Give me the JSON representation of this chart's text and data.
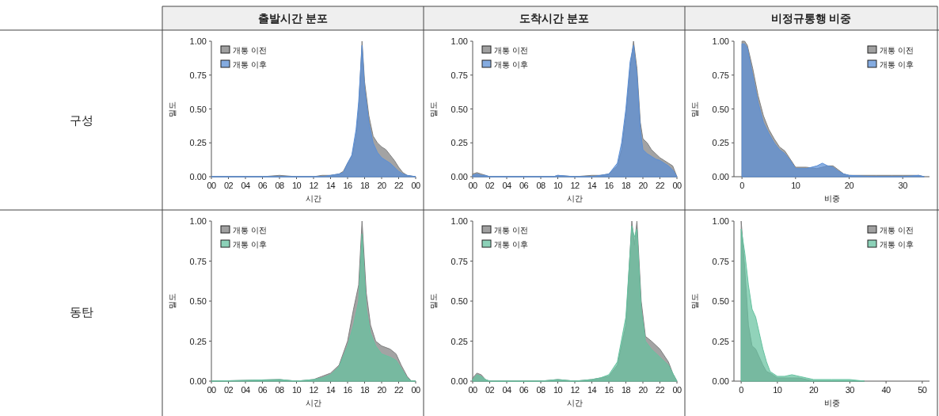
{
  "chart_data": [
    {
      "type": "area",
      "title": "출발시간 분포",
      "xlabel": "시간",
      "ylabel": "밀도",
      "legend": "top left",
      "xlim": [
        0,
        24
      ],
      "ylim": [
        0,
        1
      ],
      "xticks": [
        {
          "value": 0,
          "label": "00"
        },
        {
          "value": 2,
          "label": "02"
        },
        {
          "value": 4,
          "label": "04"
        },
        {
          "value": 6,
          "label": "06"
        },
        {
          "value": 8,
          "label": "08"
        },
        10,
        12,
        14,
        16,
        18,
        20,
        22,
        {
          "value": 24,
          "label": "00"
        }
      ],
      "yticks": [
        {
          "value": 0,
          "label": "0.00"
        },
        {
          "value": 0.25,
          "label": "0.25"
        },
        {
          "value": 0.5,
          "label": "0.50"
        },
        {
          "value": 0.75,
          "label": "0.75"
        },
        {
          "value": 1,
          "label": "1.00"
        }
      ],
      "x": [
        0,
        2,
        4,
        6,
        8,
        10,
        12,
        13,
        14,
        15,
        15.5,
        16,
        16.5,
        17,
        17.3,
        17.7,
        18,
        18.5,
        19,
        19.5,
        20,
        20.5,
        21,
        21.5,
        22,
        22.5,
        23,
        24
      ],
      "series": [
        {
          "name": "개통 이전",
          "color": "#808080",
          "values": [
            0,
            0,
            0,
            0,
            0.01,
            0,
            0,
            0.01,
            0.01,
            0.02,
            0.04,
            0.1,
            0.15,
            0.3,
            0.5,
            1.0,
            0.7,
            0.45,
            0.3,
            0.25,
            0.22,
            0.2,
            0.16,
            0.12,
            0.07,
            0.03,
            0.01,
            0
          ]
        },
        {
          "name": "개통 이후",
          "color": "#5b8fd6",
          "values": [
            0,
            0,
            0,
            0,
            0,
            0,
            0,
            0,
            0.01,
            0.02,
            0.03,
            0.1,
            0.16,
            0.35,
            0.55,
            0.97,
            0.65,
            0.4,
            0.25,
            0.18,
            0.14,
            0.12,
            0.1,
            0.07,
            0.04,
            0.02,
            0.01,
            0
          ]
        }
      ]
    },
    {
      "type": "area",
      "title": "도착시간 분포",
      "xlabel": "시간",
      "ylabel": "밀도",
      "legend": "top left",
      "xlim": [
        0,
        24
      ],
      "ylim": [
        0,
        1
      ],
      "xticks": [
        {
          "value": 0,
          "label": "00"
        },
        {
          "value": 2,
          "label": "02"
        },
        {
          "value": 4,
          "label": "04"
        },
        {
          "value": 6,
          "label": "06"
        },
        {
          "value": 8,
          "label": "08"
        },
        10,
        12,
        14,
        16,
        18,
        20,
        22,
        {
          "value": 24,
          "label": "00"
        }
      ],
      "yticks": [
        {
          "value": 0,
          "label": "0.00"
        },
        {
          "value": 0.25,
          "label": "0.25"
        },
        {
          "value": 0.5,
          "label": "0.50"
        },
        {
          "value": 0.75,
          "label": "0.75"
        },
        {
          "value": 1,
          "label": "1.00"
        }
      ],
      "x": [
        0,
        0.5,
        1,
        1.5,
        2,
        4,
        6,
        8,
        9.5,
        10,
        12,
        14,
        15,
        16,
        17,
        17.5,
        18,
        18.5,
        18.9,
        19.3,
        19.7,
        20,
        20.5,
        21,
        21.5,
        22,
        22.5,
        23,
        23.5,
        24
      ],
      "series": [
        {
          "name": "개통 이전",
          "color": "#808080",
          "values": [
            0.02,
            0.03,
            0.02,
            0.01,
            0,
            0,
            0,
            0,
            0,
            0.01,
            0,
            0.01,
            0.01,
            0.02,
            0.08,
            0.2,
            0.45,
            0.8,
            1.0,
            0.8,
            0.4,
            0.28,
            0.25,
            0.2,
            0.17,
            0.14,
            0.12,
            0.1,
            0.08,
            0
          ]
        },
        {
          "name": "개통 이후",
          "color": "#5b8fd6",
          "values": [
            0.01,
            0.02,
            0.01,
            0.01,
            0,
            0,
            0,
            0,
            0,
            0.01,
            0,
            0,
            0.01,
            0.02,
            0.1,
            0.25,
            0.5,
            0.85,
            0.97,
            0.75,
            0.35,
            0.2,
            0.17,
            0.15,
            0.13,
            0.12,
            0.1,
            0.08,
            0.05,
            0
          ]
        }
      ]
    },
    {
      "type": "area",
      "title": "비정규통행 비중",
      "xlabel": "비중",
      "ylabel": "밀도",
      "legend": "top right",
      "xlim": [
        -1.5,
        35
      ],
      "ylim": [
        0,
        1
      ],
      "xticks": [
        0,
        10,
        20,
        30
      ],
      "yticks": [
        {
          "value": 0,
          "label": "0.00"
        },
        {
          "value": 0.25,
          "label": "0.25"
        },
        {
          "value": 0.5,
          "label": "0.50"
        },
        {
          "value": 0.75,
          "label": "0.75"
        },
        {
          "value": 1,
          "label": "1.00"
        }
      ],
      "x": [
        0,
        0.5,
        1,
        2,
        3,
        4,
        5,
        6,
        7,
        8,
        9,
        10,
        12,
        14,
        15,
        16,
        17,
        18,
        19,
        20,
        25,
        28,
        30,
        33,
        34
      ],
      "series": [
        {
          "name": "개통 이전",
          "color": "#808080",
          "values": [
            1.0,
            1.0,
            0.97,
            0.8,
            0.6,
            0.45,
            0.35,
            0.28,
            0.22,
            0.19,
            0.13,
            0.07,
            0.07,
            0.06,
            0.07,
            0.08,
            0.08,
            0.05,
            0.02,
            0.01,
            0.01,
            0.01,
            0.01,
            0.01,
            0
          ]
        },
        {
          "name": "개통 이후",
          "color": "#5b8fd6",
          "values": [
            0.98,
            0.98,
            0.95,
            0.75,
            0.55,
            0.4,
            0.32,
            0.25,
            0.2,
            0.17,
            0.12,
            0.06,
            0.06,
            0.08,
            0.1,
            0.08,
            0.07,
            0.04,
            0.02,
            0.01,
            0,
            0,
            0,
            0.01,
            0
          ]
        }
      ]
    },
    {
      "type": "area",
      "xlabel": "시간",
      "ylabel": "밀도",
      "legend": "top left",
      "xlim": [
        0,
        24
      ],
      "ylim": [
        0,
        1
      ],
      "xticks": [
        {
          "value": 0,
          "label": "00"
        },
        {
          "value": 2,
          "label": "02"
        },
        {
          "value": 4,
          "label": "04"
        },
        {
          "value": 6,
          "label": "06"
        },
        {
          "value": 8,
          "label": "08"
        },
        10,
        12,
        14,
        16,
        18,
        20,
        22,
        {
          "value": 24,
          "label": "00"
        }
      ],
      "yticks": [
        {
          "value": 0,
          "label": "0.00"
        },
        {
          "value": 0.25,
          "label": "0.25"
        },
        {
          "value": 0.5,
          "label": "0.50"
        },
        {
          "value": 0.75,
          "label": "0.75"
        },
        {
          "value": 1,
          "label": "1.00"
        }
      ],
      "x": [
        0,
        8,
        10,
        12,
        13,
        14,
        15,
        16,
        16.7,
        17.3,
        17.7,
        18.2,
        18.7,
        19.3,
        20,
        21,
        21.7,
        22.3,
        23,
        23.5,
        24
      ],
      "series": [
        {
          "name": "개통 이전",
          "color": "#808080",
          "values": [
            0,
            0.01,
            0,
            0.01,
            0.03,
            0.05,
            0.1,
            0.25,
            0.45,
            0.6,
            1.0,
            0.55,
            0.35,
            0.25,
            0.22,
            0.2,
            0.17,
            0.1,
            0.03,
            0,
            0
          ]
        },
        {
          "name": "개통 이후",
          "color": "#66c2a0",
          "values": [
            0,
            0.01,
            0,
            0.01,
            0.02,
            0.04,
            0.09,
            0.22,
            0.35,
            0.5,
            0.92,
            0.45,
            0.3,
            0.22,
            0.17,
            0.15,
            0.13,
            0.08,
            0.02,
            0,
            0
          ]
        }
      ]
    },
    {
      "type": "area",
      "xlabel": "시간",
      "ylabel": "밀도",
      "legend": "top left",
      "xlim": [
        0,
        24
      ],
      "ylim": [
        0,
        1
      ],
      "xticks": [
        {
          "value": 0,
          "label": "00"
        },
        {
          "value": 2,
          "label": "02"
        },
        {
          "value": 4,
          "label": "04"
        },
        {
          "value": 6,
          "label": "06"
        },
        {
          "value": 8,
          "label": "08"
        },
        10,
        12,
        14,
        16,
        18,
        20,
        22,
        {
          "value": 24,
          "label": "00"
        }
      ],
      "yticks": [
        {
          "value": 0,
          "label": "0.00"
        },
        {
          "value": 0.25,
          "label": "0.25"
        },
        {
          "value": 0.5,
          "label": "0.50"
        },
        {
          "value": 0.75,
          "label": "0.75"
        },
        {
          "value": 1,
          "label": "1.00"
        }
      ],
      "x": [
        0,
        0.5,
        1,
        1.5,
        2,
        4,
        8,
        10,
        12,
        14,
        15,
        16,
        17,
        18,
        18.7,
        19,
        19.3,
        19.8,
        20.3,
        21,
        22,
        23,
        23.5,
        24
      ],
      "series": [
        {
          "name": "개통 이전",
          "color": "#808080",
          "values": [
            0.02,
            0.05,
            0.04,
            0.01,
            0,
            0,
            0,
            0.01,
            0,
            0.01,
            0.02,
            0.03,
            0.1,
            0.35,
            1.0,
            0.85,
            1.0,
            0.5,
            0.28,
            0.25,
            0.2,
            0.12,
            0.05,
            0
          ]
        },
        {
          "name": "개통 이후",
          "color": "#66c2a0",
          "values": [
            0.01,
            0.04,
            0.03,
            0.01,
            0,
            0,
            0,
            0.01,
            0,
            0.01,
            0.02,
            0.04,
            0.12,
            0.4,
            0.97,
            0.9,
            0.95,
            0.45,
            0.25,
            0.2,
            0.15,
            0.1,
            0.05,
            0
          ]
        }
      ]
    },
    {
      "type": "area",
      "xlabel": "비중",
      "ylabel": "밀도",
      "legend": "top right",
      "xlim": [
        -2,
        52
      ],
      "ylim": [
        0,
        1
      ],
      "xticks": [
        0,
        10,
        20,
        30,
        40,
        50
      ],
      "yticks": [
        {
          "value": 0,
          "label": "0.00"
        },
        {
          "value": 0.25,
          "label": "0.25"
        },
        {
          "value": 0.5,
          "label": "0.50"
        },
        {
          "value": 0.75,
          "label": "0.75"
        },
        {
          "value": 1,
          "label": "1.00"
        }
      ],
      "x": [
        0,
        1,
        2,
        3,
        4,
        5,
        6,
        7,
        8,
        10,
        12,
        14,
        16,
        18,
        20,
        25,
        30,
        34
      ],
      "series": [
        {
          "name": "개통 이전",
          "color": "#808080",
          "values": [
            1.0,
            0.7,
            0.35,
            0.22,
            0.2,
            0.15,
            0.1,
            0.06,
            0.05,
            0.02,
            0.02,
            0.02,
            0.02,
            0.01,
            0,
            0,
            0,
            0
          ]
        },
        {
          "name": "개통 이후",
          "color": "#66c2a0",
          "values": [
            0.95,
            0.8,
            0.6,
            0.45,
            0.4,
            0.3,
            0.2,
            0.12,
            0.06,
            0.03,
            0.03,
            0.04,
            0.03,
            0.02,
            0.01,
            0.01,
            0.01,
            0
          ]
        }
      ]
    },
    {
      "type": "other",
      "annotations": [
        "구성",
        "동탄"
      ]
    }
  ]
}
